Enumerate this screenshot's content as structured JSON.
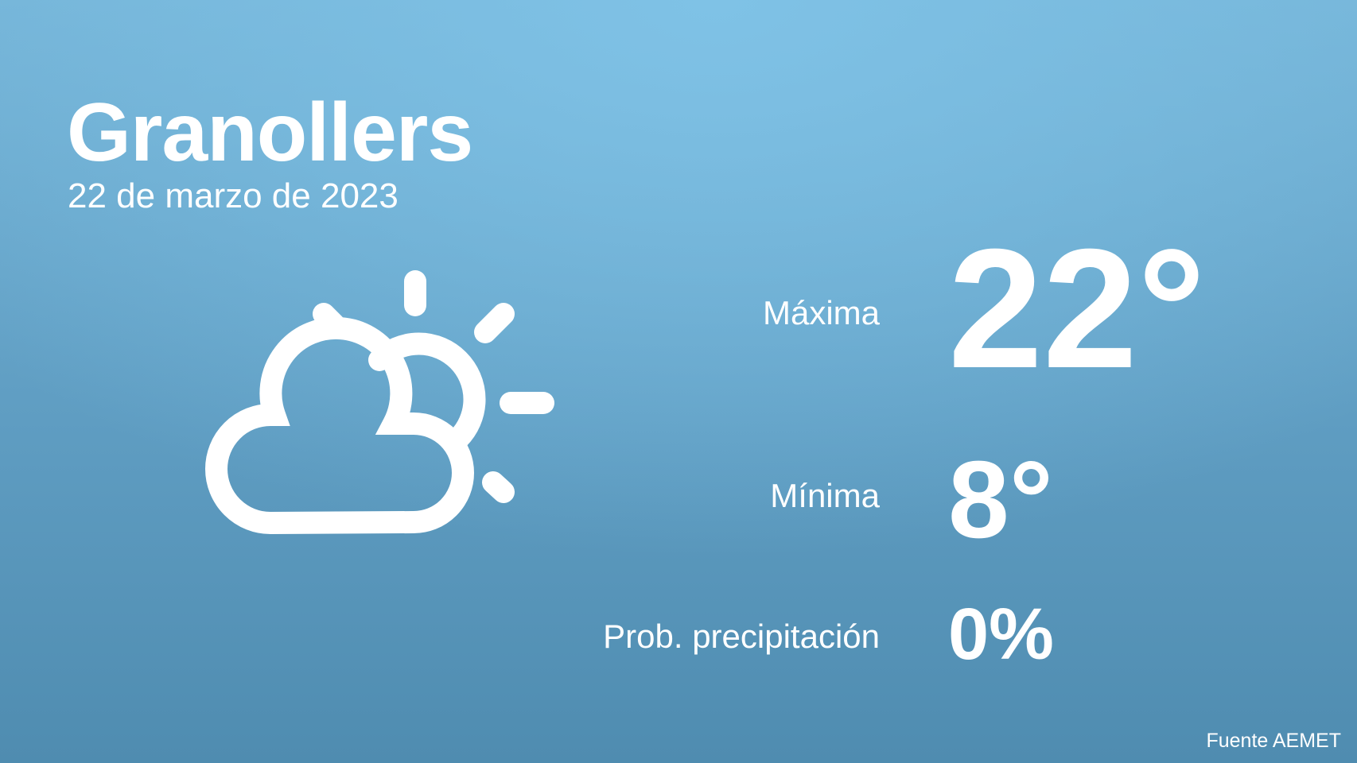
{
  "city": "Granollers",
  "date": "22 de marzo de 2023",
  "weather_icon": "partly-cloudy-icon",
  "stats": {
    "max_label": "Máxima",
    "max_value": "22°",
    "min_label": "Mínima",
    "min_value": "8°",
    "precip_label": "Prob. precipitación",
    "precip_value": "0%"
  },
  "source": "Fuente AEMET",
  "colors": {
    "background_top": "#7fc2e6",
    "background_bottom": "#4f8cb0",
    "text": "#ffffff"
  }
}
